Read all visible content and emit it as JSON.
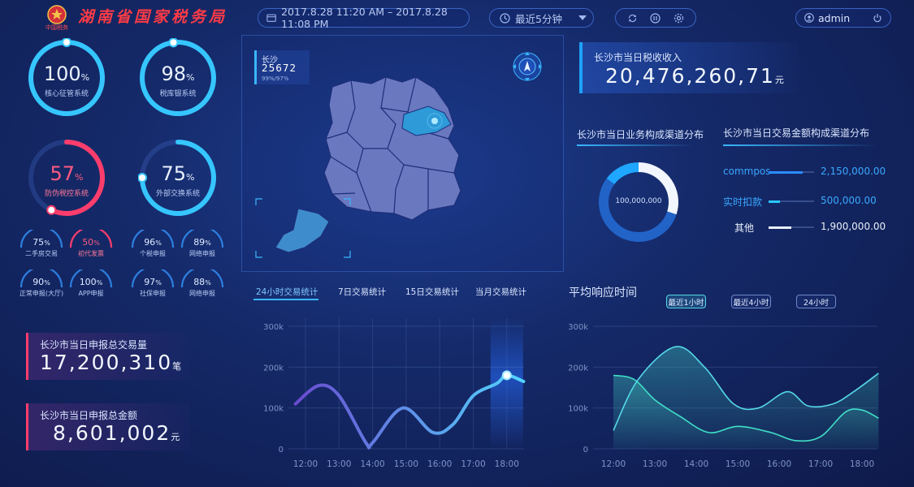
{
  "header": {
    "brand_title": "湖南省国家税务局",
    "logo_text": "中国税务",
    "date_range": "2017.8.28 11:20 AM – 2017.8.28 11:08 PM",
    "refresh_interval": "最近5分钟",
    "user": "admin",
    "icons": [
      "calendar-icon",
      "clock-icon",
      "caret-down-icon",
      "refresh-icon",
      "pause-icon",
      "gear-icon",
      "user-icon",
      "power-icon"
    ]
  },
  "rings": [
    {
      "value": "100",
      "unit": "%",
      "label": "核心征管系统",
      "fraction": 1.0,
      "color": "#36c6ff"
    },
    {
      "value": "98",
      "unit": "%",
      "label": "税库银系统",
      "fraction": 0.98,
      "color": "#36c6ff"
    },
    {
      "value": "57",
      "unit": "%",
      "label": "防伪税控系统",
      "fraction": 0.57,
      "color": "#ff3d6c"
    },
    {
      "value": "75",
      "unit": "%",
      "label": "外部交换系统",
      "fraction": 0.75,
      "color": "#36c6ff"
    }
  ],
  "mini_rings": [
    {
      "value": "75",
      "unit": "%",
      "label": "二手房交易",
      "color": "#2d7fe0"
    },
    {
      "value": "50",
      "unit": "%",
      "label": "初代发票",
      "color": "#ff3d6c"
    },
    {
      "value": "96",
      "unit": "%",
      "label": "个税申报",
      "color": "#2d7fe0"
    },
    {
      "value": "89",
      "unit": "%",
      "label": "网络申报",
      "color": "#2d7fe0"
    },
    {
      "value": "90",
      "unit": "%",
      "label": "正常申报(大厅)",
      "color": "#2d7fe0"
    },
    {
      "value": "100",
      "unit": "%",
      "label": "APP申报",
      "color": "#2d7fe0"
    },
    {
      "value": "97",
      "unit": "%",
      "label": "社保申报",
      "color": "#2d7fe0"
    },
    {
      "value": "88",
      "unit": "%",
      "label": "网络申报",
      "color": "#2d7fe0"
    }
  ],
  "cards": [
    {
      "title": "长沙市当日申报总交易量",
      "value": "17,200,310",
      "unit": "笔"
    },
    {
      "title": "长沙市当日申报总金额",
      "value": "8,601,002",
      "unit": "元"
    }
  ],
  "map": {
    "city": "长沙",
    "count": "25672",
    "ratio": "99%/97%"
  },
  "revenue": {
    "title": "长沙市当日税收收入",
    "value": "20,476,260,71",
    "unit": "元"
  },
  "channel": {
    "title": "长沙市当日业务构成渠道分布",
    "donut_center": "100,000,000",
    "segments": [
      {
        "fraction": 0.3,
        "color": "#f2f6ff"
      },
      {
        "fraction": 0.55,
        "color": "#2263c8"
      },
      {
        "fraction": 0.15,
        "color": "#1fa6ff"
      }
    ]
  },
  "amount_channel": {
    "title": "长沙市当日交易金额构成渠道分布",
    "rows": [
      {
        "name": "commpos",
        "value": "2,150,000.00",
        "fraction": 0.75,
        "color": "#2b8cff"
      },
      {
        "name": "实时扣款",
        "value": "500,000.00",
        "fraction": 0.25,
        "color": "#29c7ff"
      },
      {
        "name": "其他",
        "value": "1,900,000.00",
        "fraction": 0.5,
        "color": "#e8eef8"
      }
    ]
  },
  "tabs": [
    "24小时交易统计",
    "7日交易统计",
    "15日交易统计",
    "当月交易统计"
  ],
  "response": {
    "title": "平均响应时间",
    "buttons": [
      "最近1小时",
      "最近4小时",
      "24小时"
    ]
  },
  "chart_data": [
    {
      "type": "line",
      "x": [
        "12:00",
        "13:00",
        "14:00",
        "15:00",
        "16:00",
        "17:00",
        "18:00"
      ],
      "yticks": [
        "0",
        "100k",
        "200k",
        "300k"
      ],
      "ylim": [
        0,
        300000
      ],
      "series": [
        {
          "points": [
            [
              11.7,
              110000
            ],
            [
              12.4,
              155000
            ],
            [
              13.0,
              130000
            ],
            [
              13.8,
              15000
            ],
            [
              14.0,
              15000
            ],
            [
              14.9,
              100000
            ],
            [
              15.8,
              40000
            ],
            [
              16.4,
              60000
            ],
            [
              17.0,
              130000
            ],
            [
              17.7,
              160000
            ],
            [
              18.0,
              180000
            ],
            [
              18.5,
              165000
            ]
          ]
        }
      ]
    },
    {
      "type": "area",
      "x": [
        "12:00",
        "13:00",
        "14:00",
        "15:00",
        "16:00",
        "17:00",
        "18:00"
      ],
      "yticks": [
        "0",
        "100k",
        "200k",
        "300k"
      ],
      "ylim": [
        0,
        300000
      ],
      "series": [
        {
          "points": [
            [
              12.0,
              180000
            ],
            [
              12.5,
              170000
            ],
            [
              13.0,
              120000
            ],
            [
              13.6,
              80000
            ],
            [
              14.3,
              40000
            ],
            [
              15.0,
              55000
            ],
            [
              15.8,
              40000
            ],
            [
              16.4,
              20000
            ],
            [
              17.0,
              30000
            ],
            [
              17.6,
              90000
            ],
            [
              18.0,
              95000
            ],
            [
              18.4,
              75000
            ]
          ]
        },
        {
          "points": [
            [
              12.0,
              45000
            ],
            [
              12.6,
              170000
            ],
            [
              13.5,
              250000
            ],
            [
              14.2,
              200000
            ],
            [
              14.9,
              110000
            ],
            [
              15.5,
              100000
            ],
            [
              16.2,
              140000
            ],
            [
              16.7,
              105000
            ],
            [
              17.3,
              110000
            ],
            [
              17.8,
              140000
            ],
            [
              18.4,
              185000
            ]
          ]
        }
      ]
    }
  ]
}
